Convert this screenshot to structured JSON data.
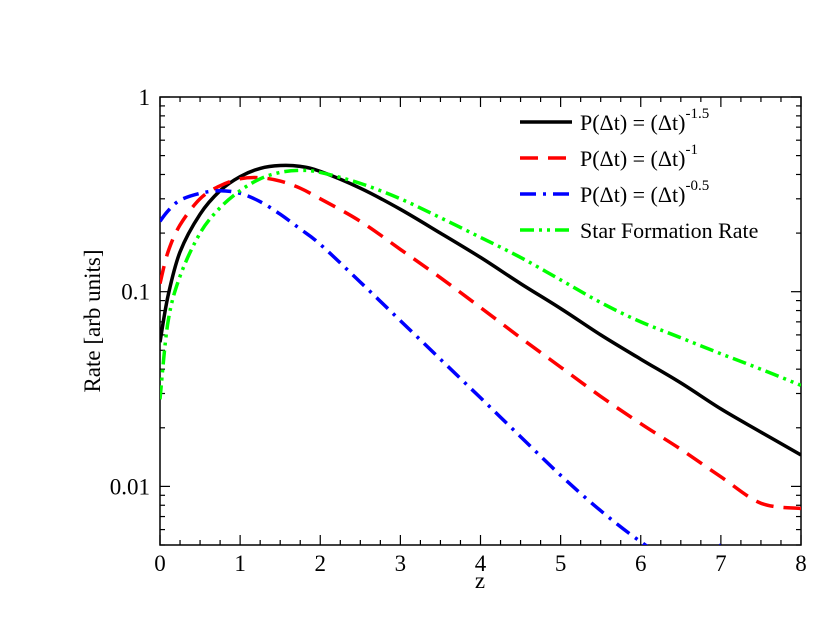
{
  "chart_data": {
    "type": "line",
    "title": "",
    "xlabel": "z",
    "ylabel": "Rate [arb units]",
    "xlim": [
      0,
      8
    ],
    "ylim": [
      0.005,
      1
    ],
    "y_scale": "log",
    "grid": false,
    "legend_position": "top-right",
    "x_ticks": [
      0,
      1,
      2,
      3,
      4,
      5,
      6,
      7,
      8
    ],
    "x_tick_labels": [
      "0",
      "1",
      "2",
      "3",
      "4",
      "5",
      "6",
      "7",
      "8"
    ],
    "y_ticks": [
      0.01,
      0.1,
      1
    ],
    "y_tick_labels": [
      "0.01",
      "0.1",
      "1"
    ],
    "series": [
      {
        "legend_base": "P(Δt) = (Δt)",
        "legend_exp": "-1.5",
        "color": "#000000",
        "style": "solid",
        "x": [
          0,
          0.1,
          0.25,
          0.5,
          0.75,
          1.0,
          1.25,
          1.5,
          1.75,
          2.0,
          2.5,
          3.0,
          3.5,
          4.0,
          4.5,
          5.0,
          5.5,
          6.0,
          6.5,
          7.0,
          7.5,
          8.0
        ],
        "y": [
          0.055,
          0.095,
          0.16,
          0.25,
          0.33,
          0.39,
          0.43,
          0.445,
          0.44,
          0.415,
          0.34,
          0.265,
          0.2,
          0.15,
          0.11,
          0.082,
          0.06,
          0.045,
          0.034,
          0.025,
          0.019,
          0.0145
        ]
      },
      {
        "legend_base": "P(Δt) = (Δt)",
        "legend_exp": "-1",
        "color": "#ff0000",
        "style": "dashed",
        "x": [
          0,
          0.1,
          0.25,
          0.5,
          0.75,
          1.0,
          1.25,
          1.5,
          1.75,
          2.0,
          2.5,
          3.0,
          3.5,
          4.0,
          4.5,
          5.0,
          5.5,
          6.0,
          6.5,
          7.0,
          7.5,
          8.0
        ],
        "y": [
          0.11,
          0.16,
          0.22,
          0.3,
          0.35,
          0.38,
          0.385,
          0.37,
          0.34,
          0.3,
          0.23,
          0.165,
          0.118,
          0.083,
          0.058,
          0.041,
          0.029,
          0.021,
          0.0155,
          0.0112,
          0.0082,
          0.0077
        ]
      },
      {
        "legend_base": "P(Δt) = (Δt)",
        "legend_exp": "-0.5",
        "color": "#0000ff",
        "style": "dashdot",
        "x": [
          0,
          0.1,
          0.25,
          0.5,
          0.75,
          1.0,
          1.25,
          1.5,
          1.75,
          2.0,
          2.5,
          3.0,
          3.5,
          4.0,
          4.5,
          5.0,
          5.5,
          6.0,
          6.5,
          7.0
        ],
        "y": [
          0.23,
          0.26,
          0.295,
          0.32,
          0.33,
          0.32,
          0.29,
          0.25,
          0.21,
          0.175,
          0.112,
          0.071,
          0.045,
          0.0285,
          0.018,
          0.0114,
          0.0075,
          0.0052,
          0.0039,
          0.005
        ]
      },
      {
        "legend_base": "Star Formation Rate",
        "legend_exp": "",
        "color": "#00ff00",
        "style": "dashdotdot",
        "x": [
          0,
          0.1,
          0.25,
          0.5,
          0.75,
          1.0,
          1.25,
          1.5,
          1.75,
          2.0,
          2.5,
          3.0,
          3.5,
          4.0,
          4.5,
          5.0,
          5.5,
          6.0,
          6.5,
          7.0,
          7.5,
          8.0
        ],
        "y": [
          0.028,
          0.07,
          0.12,
          0.2,
          0.27,
          0.33,
          0.38,
          0.41,
          0.42,
          0.41,
          0.36,
          0.3,
          0.24,
          0.19,
          0.15,
          0.115,
          0.088,
          0.07,
          0.058,
          0.048,
          0.04,
          0.033
        ]
      }
    ]
  }
}
